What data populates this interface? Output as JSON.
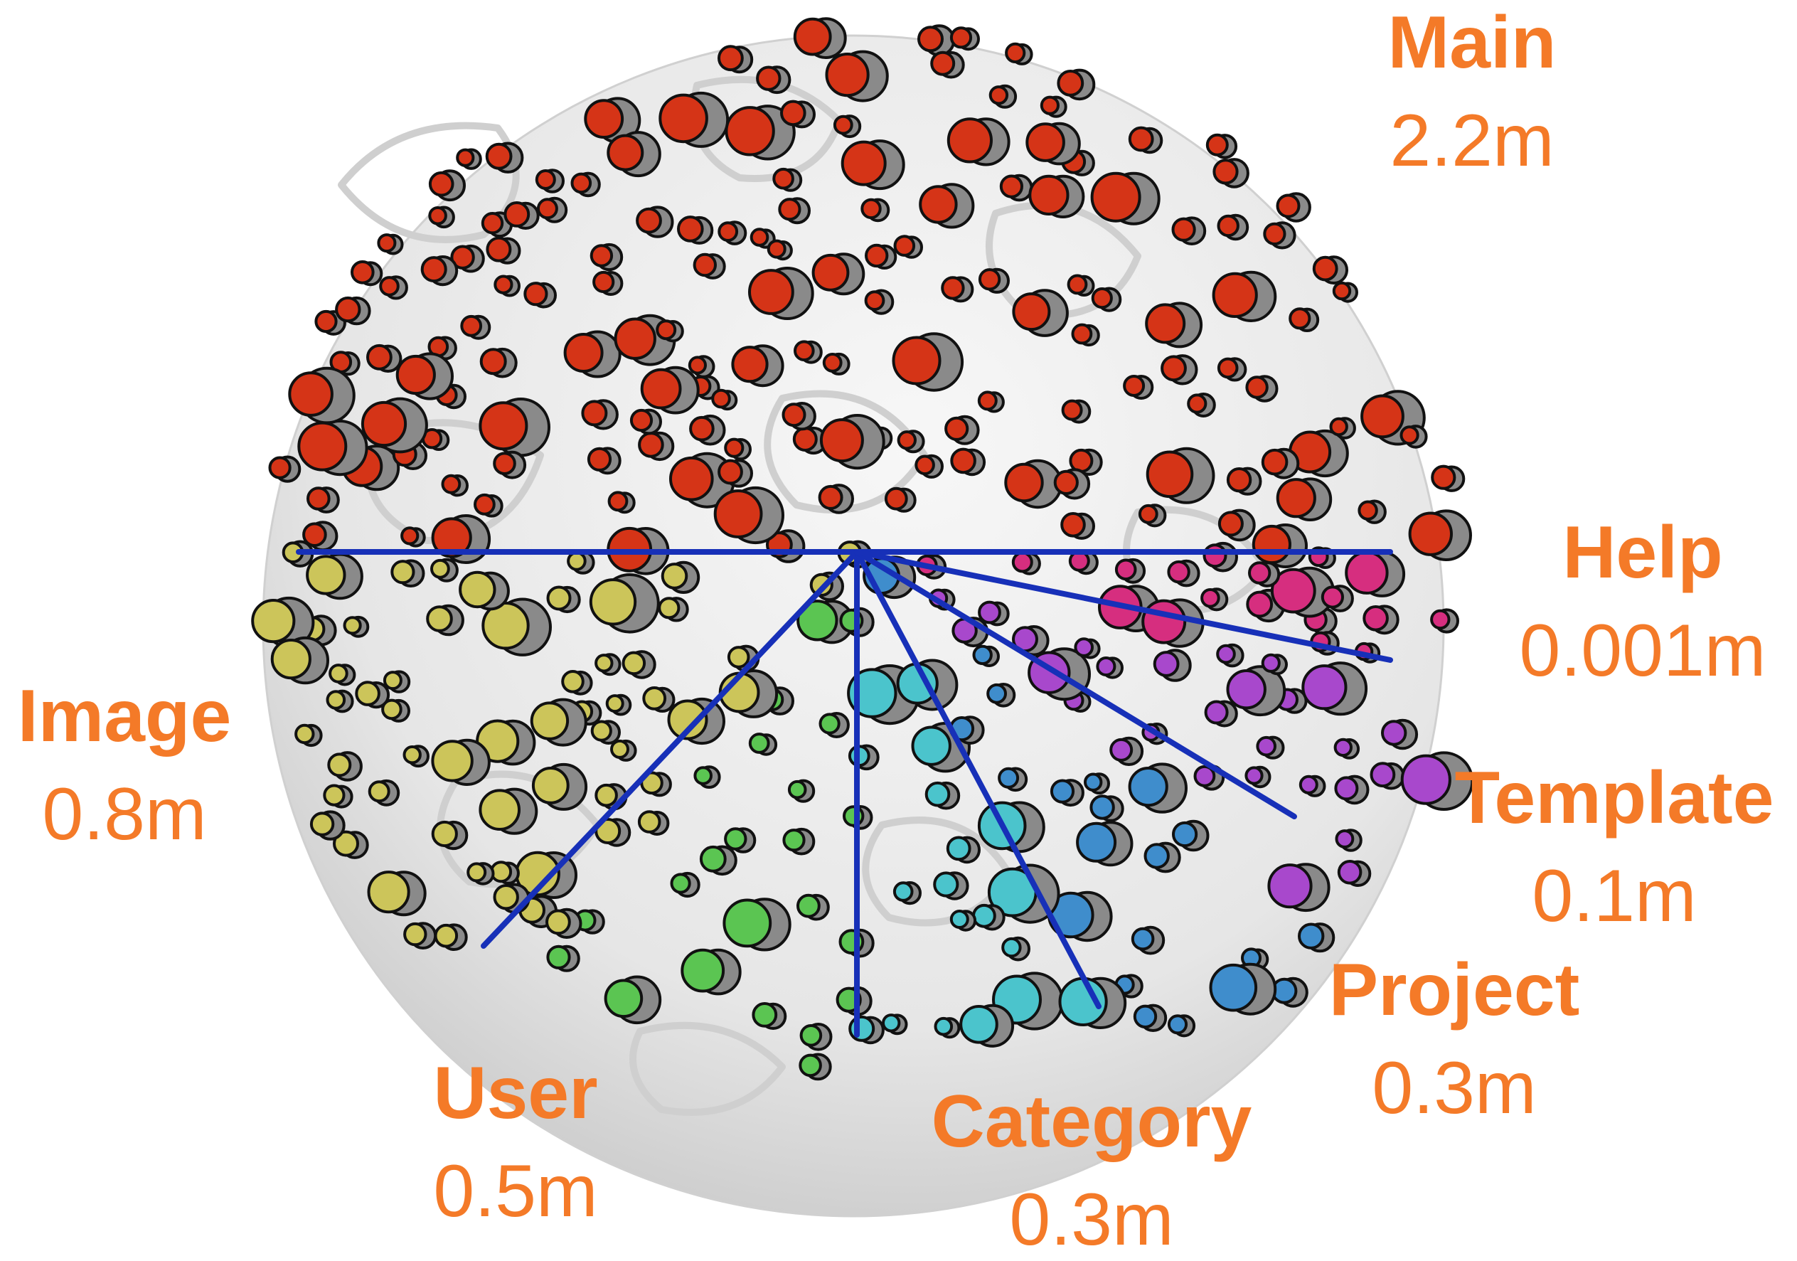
{
  "colors": {
    "label": "#F47A28",
    "divider": "#1730B8",
    "ghost": "#8A8A8A",
    "outline": "#111111",
    "globe": "#E4E4E4"
  },
  "namespaces": [
    {
      "key": "main",
      "name": "Main",
      "value": "2.2m",
      "color": "#D53417"
    },
    {
      "key": "help",
      "name": "Help",
      "value": "0.001m",
      "color": "#D62E7F"
    },
    {
      "key": "template",
      "name": "Template",
      "value": "0.1m",
      "color": "#A848CC"
    },
    {
      "key": "project",
      "name": "Project",
      "value": "0.3m",
      "color": "#3F8DCC"
    },
    {
      "key": "category",
      "name": "Category",
      "value": "0.3m",
      "color": "#4BC4CC"
    },
    {
      "key": "user",
      "name": "User",
      "value": "0.5m",
      "color": "#5BC552"
    },
    {
      "key": "image",
      "name": "Image",
      "value": "0.8m",
      "color": "#CCC55A"
    }
  ]
}
